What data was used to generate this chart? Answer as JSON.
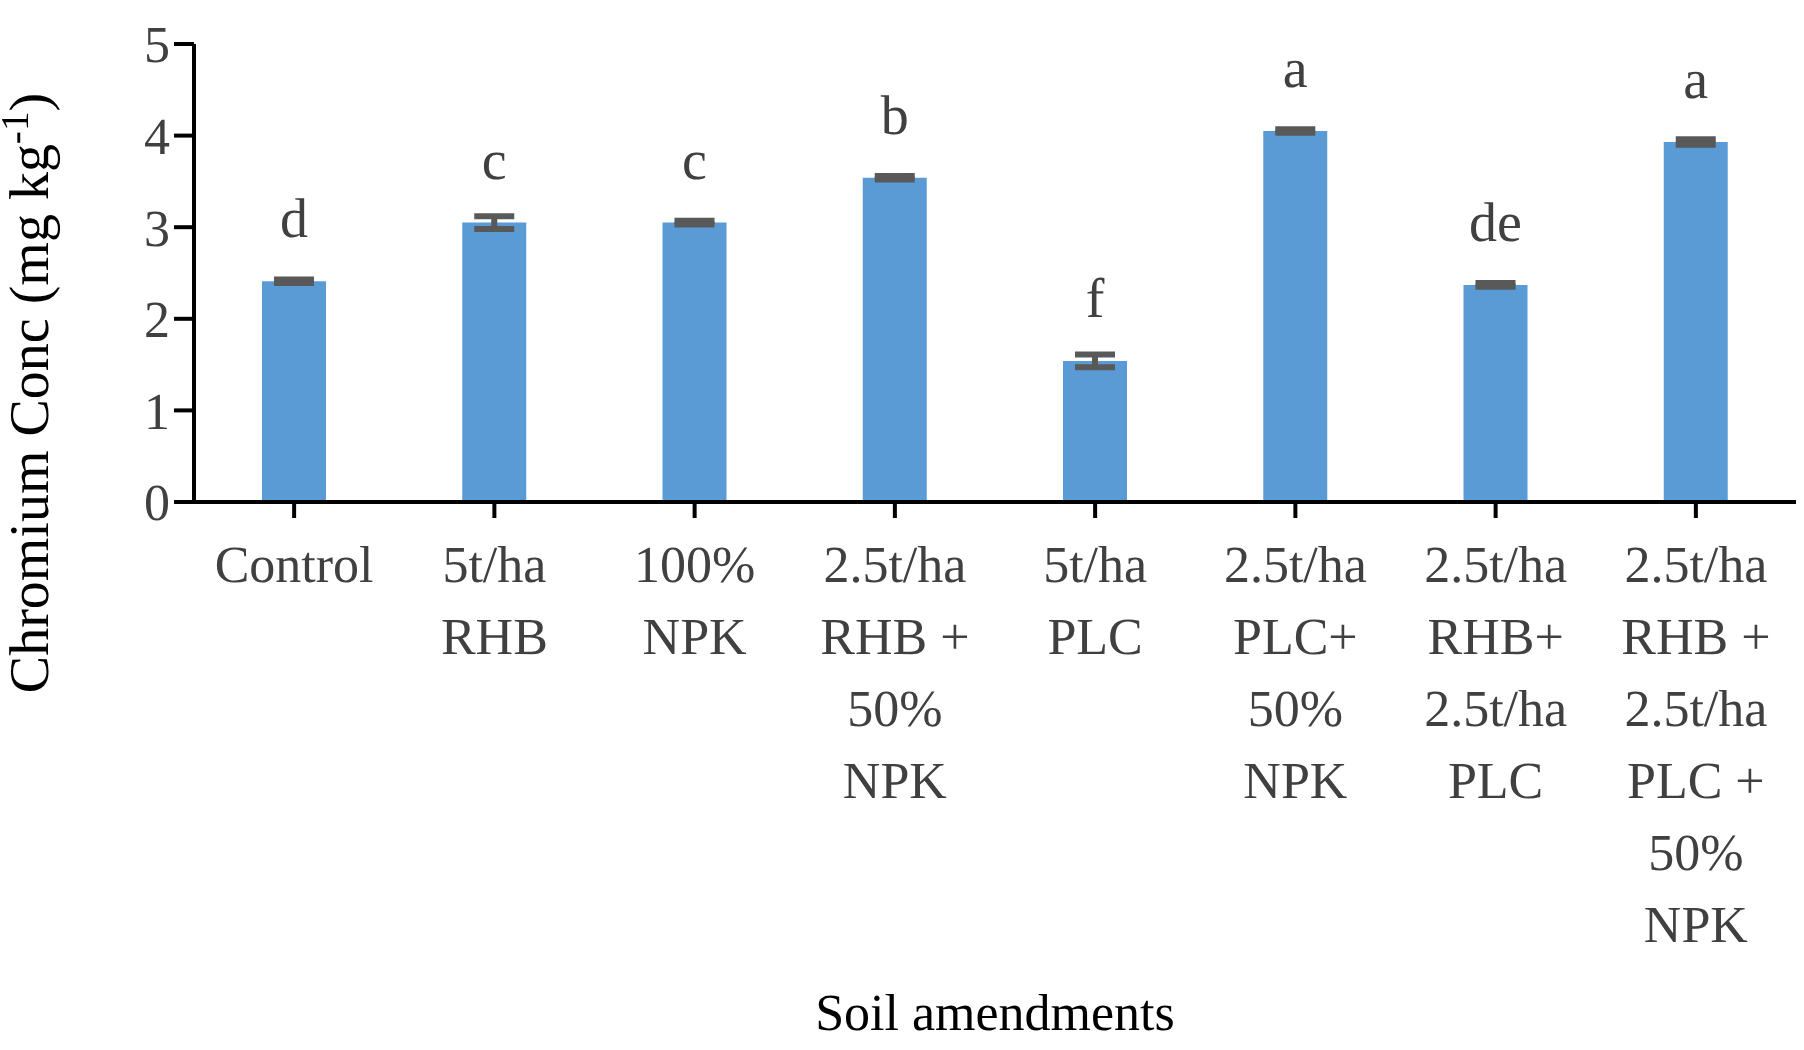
{
  "chart_data": {
    "type": "bar",
    "xlabel": "Soil amendments",
    "ylabel": "Chromium Conc (mg kg$^{-1}$)",
    "categories": [
      "Control",
      "5t/ha\nRHB",
      "100%\nNPK",
      "2.5t/ha\nRHB +\n50%\nNPK",
      "5t/ha\nPLC",
      "2.5t/ha\nPLC+\n50%\nNPK",
      "2.5t/ha\nRHB+\n2.5t/ha\nPLC",
      "2.5t/ha\nRHB +\n2.5t/ha\nPLC +\n50%\nNPK"
    ],
    "values": [
      2.41,
      3.05,
      3.05,
      3.54,
      1.54,
      4.05,
      2.37,
      3.93
    ],
    "errors": [
      0.02,
      0.07,
      0.02,
      0.02,
      0.07,
      0.02,
      0.02,
      0.03
    ],
    "color": "#5b9bd5",
    "ylim": [
      0,
      5
    ],
    "yticks": [
      0,
      1,
      2,
      3,
      4,
      5
    ],
    "grid": false,
    "legend": false,
    "annotations": [
      {
        "text": "d",
        "x": "Control",
        "y": 2.41
      },
      {
        "text": "c",
        "x": "5t/ha\nRHB",
        "y": 3.05
      },
      {
        "text": "c",
        "x": "100%\nNPK",
        "y": 3.05
      },
      {
        "text": "b",
        "x": "2.5t/ha\nRHB +\n50%\nNPK",
        "y": 3.54
      },
      {
        "text": "f",
        "x": "5t/ha\nPLC",
        "y": 1.54
      },
      {
        "text": "a",
        "x": "2.5t/ha\nPLC+\n50%\nNPK",
        "y": 4.05
      },
      {
        "text": "de",
        "x": "2.5t/ha\nRHB+\n2.5t/ha\nPLC",
        "y": 2.37
      },
      {
        "text": "a",
        "x": "2.5t/ha\nRHB +\n2.5t/ha\nPLC +\n50%\nNPK",
        "y": 3.93
      }
    ]
  }
}
